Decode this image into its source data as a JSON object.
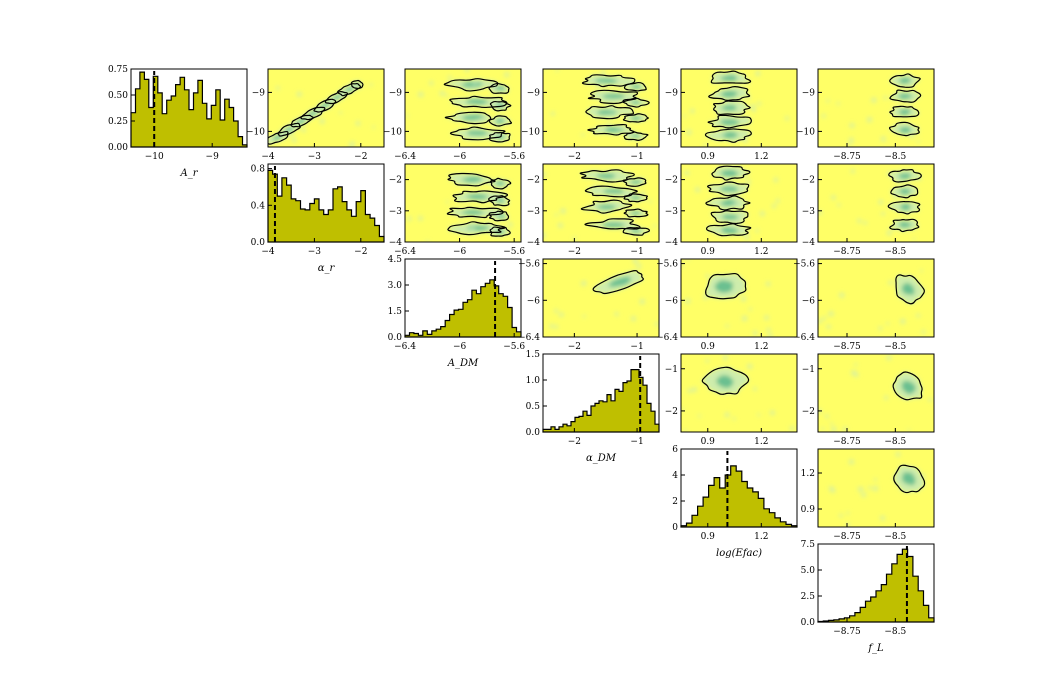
{
  "chart_data": {
    "type": "corner",
    "colors": {
      "histogram_fill": "#bfbf00",
      "histogram_edge": "#000000",
      "median_line": "#000000",
      "density_background": "#ffff66",
      "density_low": "#c9ebb4",
      "density_high": "#1a9a7a",
      "contour_line": "#000000"
    },
    "parameters": [
      {
        "label": "A_r",
        "display": "A_r",
        "range": [
          -10.4,
          -8.4
        ],
        "ticks": [
          -10,
          -9
        ],
        "median": -10.0
      },
      {
        "label": "α_r",
        "display": "α_r",
        "range": [
          -4,
          -1.5
        ],
        "ticks": [
          -4,
          -3,
          -2
        ],
        "median": -3.85
      },
      {
        "label": "A_DM",
        "display": "A_DM",
        "range": [
          -6.4,
          -5.55
        ],
        "ticks": [
          -6.4,
          -6.0,
          -5.6
        ],
        "median": -5.74
      },
      {
        "label": "α_DM",
        "display": "α_DM",
        "range": [
          -2.5,
          -0.65
        ],
        "ticks": [
          -2,
          -1
        ],
        "median": -0.95
      },
      {
        "label": "log(Efac)",
        "display": "log(Efac)",
        "range": [
          0.75,
          1.4
        ],
        "ticks": [
          0.9,
          1.2
        ],
        "median": 1.01
      },
      {
        "label": "f_L",
        "display": "f_L",
        "range": [
          -8.9,
          -8.3
        ],
        "ticks": [
          -8.75,
          -8.5
        ],
        "median": -8.44
      }
    ],
    "ytick_labels": [
      [
        "0.00",
        "0.25",
        "0.50",
        "0.75"
      ],
      [
        "0.0",
        "0.4",
        "0.8"
      ],
      [
        "0.0",
        "1.5",
        "3.0",
        "4.5"
      ],
      [
        "0.0",
        "0.5",
        "1.0",
        "1.5"
      ],
      [
        "0",
        "2",
        "4",
        "6"
      ],
      [
        "0.0",
        "2.5",
        "5.0",
        "7.5"
      ]
    ],
    "diagonal_histograms": [
      {
        "parameter": "A_r",
        "ymax": 0.75,
        "counts": [
          0.33,
          0.56,
          0.72,
          0.65,
          0.38,
          0.68,
          0.52,
          0.32,
          0.45,
          0.49,
          0.6,
          0.67,
          0.55,
          0.36,
          0.52,
          0.64,
          0.42,
          0.27,
          0.4,
          0.55,
          0.26,
          0.46,
          0.38,
          0.25,
          0.1,
          0.02
        ]
      },
      {
        "parameter": "α_r",
        "ymax": 0.85,
        "counts": [
          0.78,
          0.74,
          0.5,
          0.7,
          0.62,
          0.47,
          0.45,
          0.36,
          0.35,
          0.42,
          0.47,
          0.35,
          0.3,
          0.35,
          0.58,
          0.6,
          0.44,
          0.35,
          0.28,
          0.44,
          0.56,
          0.3,
          0.26,
          0.18,
          0.06
        ]
      },
      {
        "parameter": "A_DM",
        "ymax": 4.5,
        "counts": [
          0.1,
          0.25,
          0.2,
          0.1,
          0.35,
          0.15,
          0.35,
          0.45,
          0.6,
          0.95,
          1.3,
          1.55,
          1.6,
          2.0,
          2.15,
          2.7,
          2.5,
          2.9,
          3.1,
          3.3,
          2.95,
          2.5,
          2.35,
          1.7,
          0.55,
          0.3
        ]
      },
      {
        "parameter": "α_DM",
        "ymax": 1.5,
        "counts": [
          0.05,
          0.05,
          0.1,
          0.05,
          0.1,
          0.15,
          0.12,
          0.2,
          0.28,
          0.3,
          0.4,
          0.32,
          0.5,
          0.55,
          0.6,
          0.58,
          0.72,
          0.6,
          0.82,
          0.78,
          0.95,
          0.98,
          1.2,
          1.2,
          1.05,
          0.9,
          0.55,
          0.4,
          0.15
        ]
      },
      {
        "parameter": "log(Efac)",
        "ymax": 6,
        "counts": [
          0.1,
          0.3,
          0.9,
          1.6,
          2.3,
          3.2,
          3.8,
          3.0,
          4.0,
          4.7,
          4.3,
          3.5,
          3.0,
          2.7,
          2.2,
          1.4,
          1.1,
          0.7,
          0.4,
          0.2,
          0.1
        ]
      },
      {
        "parameter": "f_L",
        "ymax": 7.5,
        "counts": [
          0.05,
          0.1,
          0.15,
          0.2,
          0.3,
          0.4,
          0.6,
          0.9,
          1.4,
          2.0,
          2.4,
          3.0,
          3.6,
          4.6,
          5.6,
          6.5,
          7.0,
          6.3,
          4.4,
          3.0,
          1.6,
          0.4
        ]
      }
    ],
    "off_diagonal": {
      "note": "2D density maps with one contour level; present for every parameter pair in columns right of diagonal",
      "contour_level": 1
    }
  }
}
